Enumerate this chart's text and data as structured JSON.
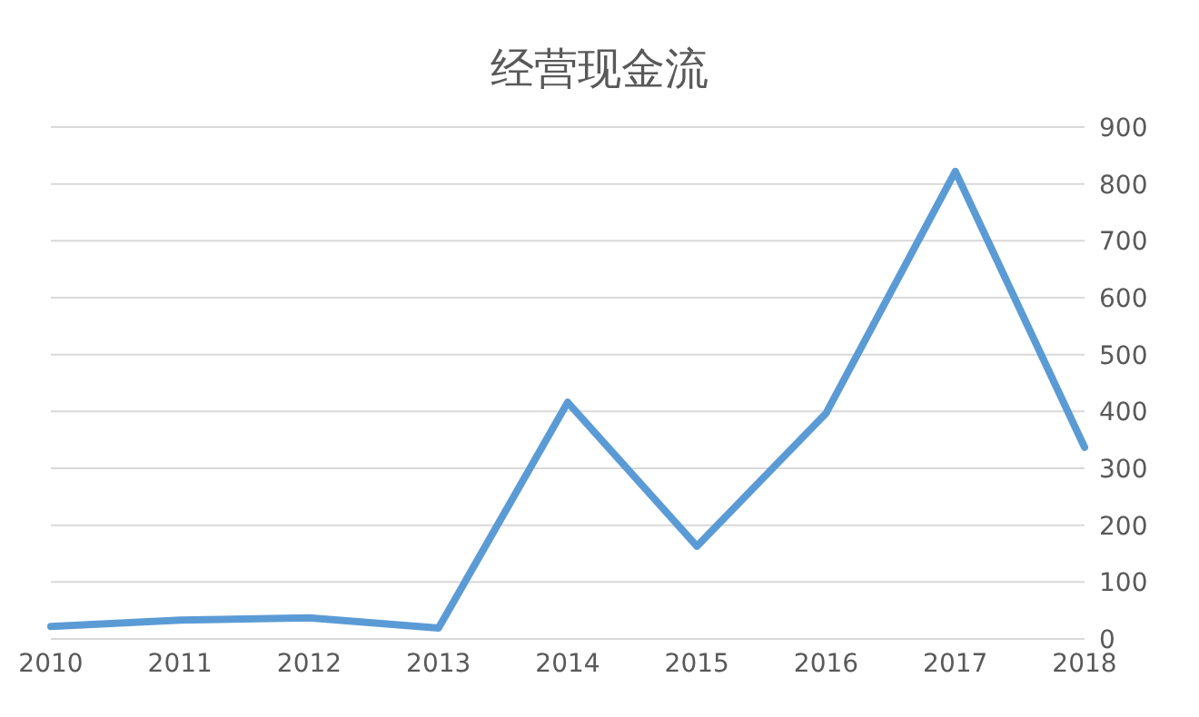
{
  "chart_data": {
    "type": "line",
    "title": "经营现金流",
    "categories": [
      "2010",
      "2011",
      "2012",
      "2013",
      "2014",
      "2015",
      "2016",
      "2017",
      "2018"
    ],
    "series": [
      {
        "color": "#5b9bd5",
        "values": [
          22,
          33,
          37,
          19,
          416,
          163,
          397,
          822,
          337
        ]
      }
    ],
    "ylim": [
      0,
      900
    ],
    "yticks": [
      0,
      100,
      200,
      300,
      400,
      500,
      600,
      700,
      800,
      900
    ],
    "grid": "y",
    "legend": false,
    "marker": "none",
    "line_style": "solid"
  }
}
